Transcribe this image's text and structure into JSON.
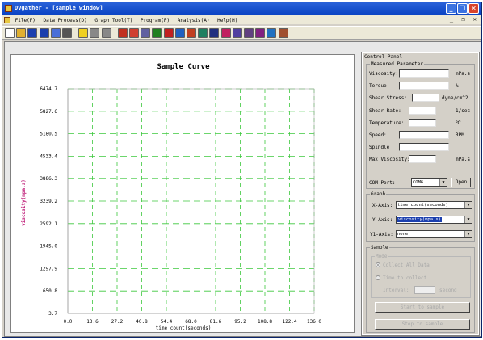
{
  "window": {
    "title": "Dvgather - [sample window]",
    "min_label": "_",
    "max_label": "❐",
    "close_label": "✕"
  },
  "menubar": {
    "items": [
      "File(F)",
      "Data Process(D)",
      "Graph Tool(T)",
      "Program(P)",
      "Analysis(A)",
      "Help(H)"
    ],
    "mdi_controls": "_ ❐ ✕"
  },
  "toolbar": {
    "buttons": [
      "new-icon",
      "open-icon",
      "save-icon",
      "save-as-icon",
      "print-preview-icon",
      "print-icon",
      "chart-icon",
      "grid-icon",
      "blank-icon",
      "sample-icon",
      "tool-a-icon",
      "tool-b-icon",
      "check-icon",
      "cross-icon",
      "tool-c-icon",
      "tool-d-icon",
      "table-icon",
      "cursor-icon",
      "text-icon",
      "display-icon",
      "monitor-icon",
      "color-icon",
      "wand-icon",
      "pin-icon"
    ],
    "colors": [
      "#ffffff",
      "#e0b030",
      "#1b3fae",
      "#1b3fae",
      "#4a6fd8",
      "#555555",
      "#f0d020",
      "#888888",
      "#888888",
      "#c03020",
      "#d04030",
      "#6060a0",
      "#208020",
      "#c02020",
      "#2060c0",
      "#c04020",
      "#208060",
      "#203080",
      "#c02060",
      "#5040a0",
      "#604080",
      "#802080",
      "#2070c0",
      "#a05030"
    ]
  },
  "chart_data": {
    "type": "line",
    "title": "Sample Curve",
    "xlabel": "time count(seconds)",
    "ylabel": "viscosity(mpa.s)",
    "x_ticks": [
      "0.0",
      "13.6",
      "27.2",
      "40.8",
      "54.4",
      "68.0",
      "81.6",
      "95.2",
      "108.8",
      "122.4",
      "136.0"
    ],
    "y_ticks": [
      "6474.7",
      "5827.6",
      "5180.5",
      "4533.4",
      "3886.3",
      "3239.2",
      "2592.1",
      "1945.0",
      "1297.9",
      "650.8",
      "3.7"
    ],
    "xlim": [
      0.0,
      136.0
    ],
    "ylim": [
      3.7,
      6474.7
    ],
    "grid": true,
    "grid_color": "#3cc83c",
    "ylabel_color": "#c0207a",
    "series": []
  },
  "control_panel": {
    "title": "Control Panel",
    "measured": {
      "title": "Measured Parameter",
      "rows": [
        {
          "label": "Viscosity:",
          "unit": "mPa.s"
        },
        {
          "label": "Torque:",
          "unit": "%"
        },
        {
          "label": "Shear Stress:",
          "unit": "dyne/cm^2"
        },
        {
          "label": "Shear Rate:",
          "unit": "1/sec"
        },
        {
          "label": "Temperature:",
          "unit": "℃"
        },
        {
          "label": "Speed:",
          "unit": "RPM"
        },
        {
          "label": "Spindle",
          "unit": ""
        },
        {
          "label": "Max Viscosity:",
          "unit": "mPa.s"
        }
      ],
      "com_label": "COM Port:",
      "com_value": "COM6",
      "open_label": "Open"
    },
    "graph": {
      "title": "Graph",
      "x_axis_label": "X-Axis:",
      "x_axis_value": "time count(seconds)",
      "y_axis_label": "Y-Axis:",
      "y_axis_value": "viscosity(mpa.s)",
      "y1_axis_label": "Y1-Axis:",
      "y1_axis_value": "none"
    },
    "sample": {
      "title": "Sample",
      "mode_title": "Mode",
      "collect_all": "Collect All Data",
      "time_collect": "Time to collect",
      "interval_label": "Interval:",
      "interval_unit": "second",
      "start_label": "Start to sample",
      "stop_label": "Stop to sample"
    }
  }
}
